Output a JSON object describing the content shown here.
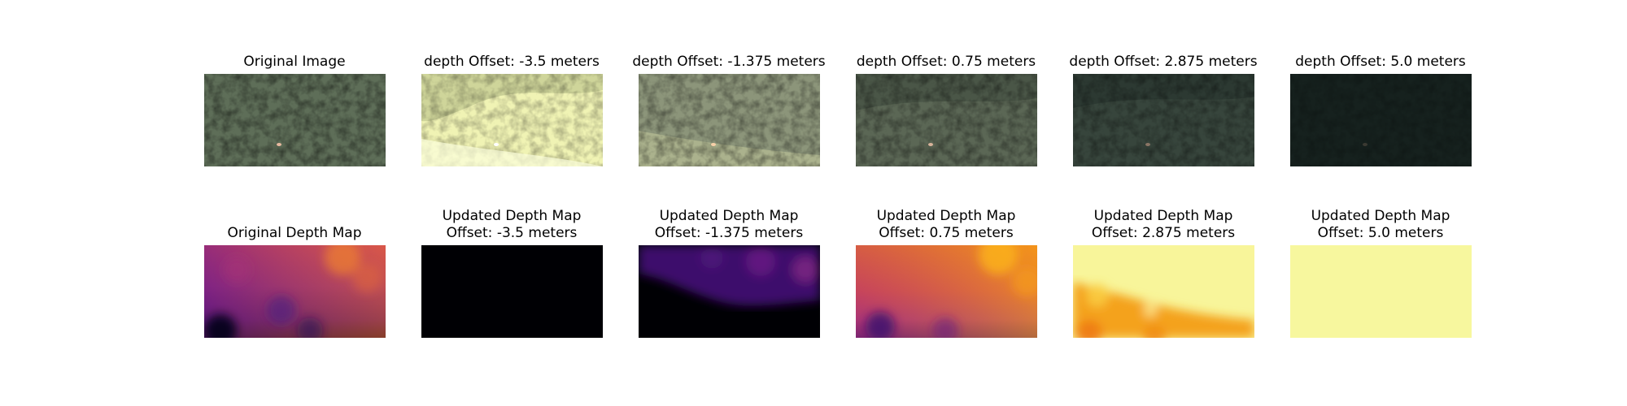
{
  "figure": {
    "image_row": {
      "titles": [
        "Original Image",
        "depth Offset: -3.5 meters",
        "depth Offset: -1.375 meters",
        "depth Offset: 0.75 meters",
        "depth Offset: 2.875 meters",
        "depth Offset: 5.0 meters"
      ],
      "tints": [
        "#5e6e58",
        "#f0f3b4",
        "#8c957a",
        "#5b6755",
        "#37453c",
        "#16211e"
      ]
    },
    "depth_row": {
      "title_original": "Original Depth Map",
      "updated_title": "Updated Depth Map",
      "offsets": [
        "Offset: -3.5 meters",
        "Offset: -1.375 meters",
        "Offset: 0.75 meters",
        "Offset: 2.875 meters",
        "Offset: 5.0 meters"
      ]
    }
  }
}
